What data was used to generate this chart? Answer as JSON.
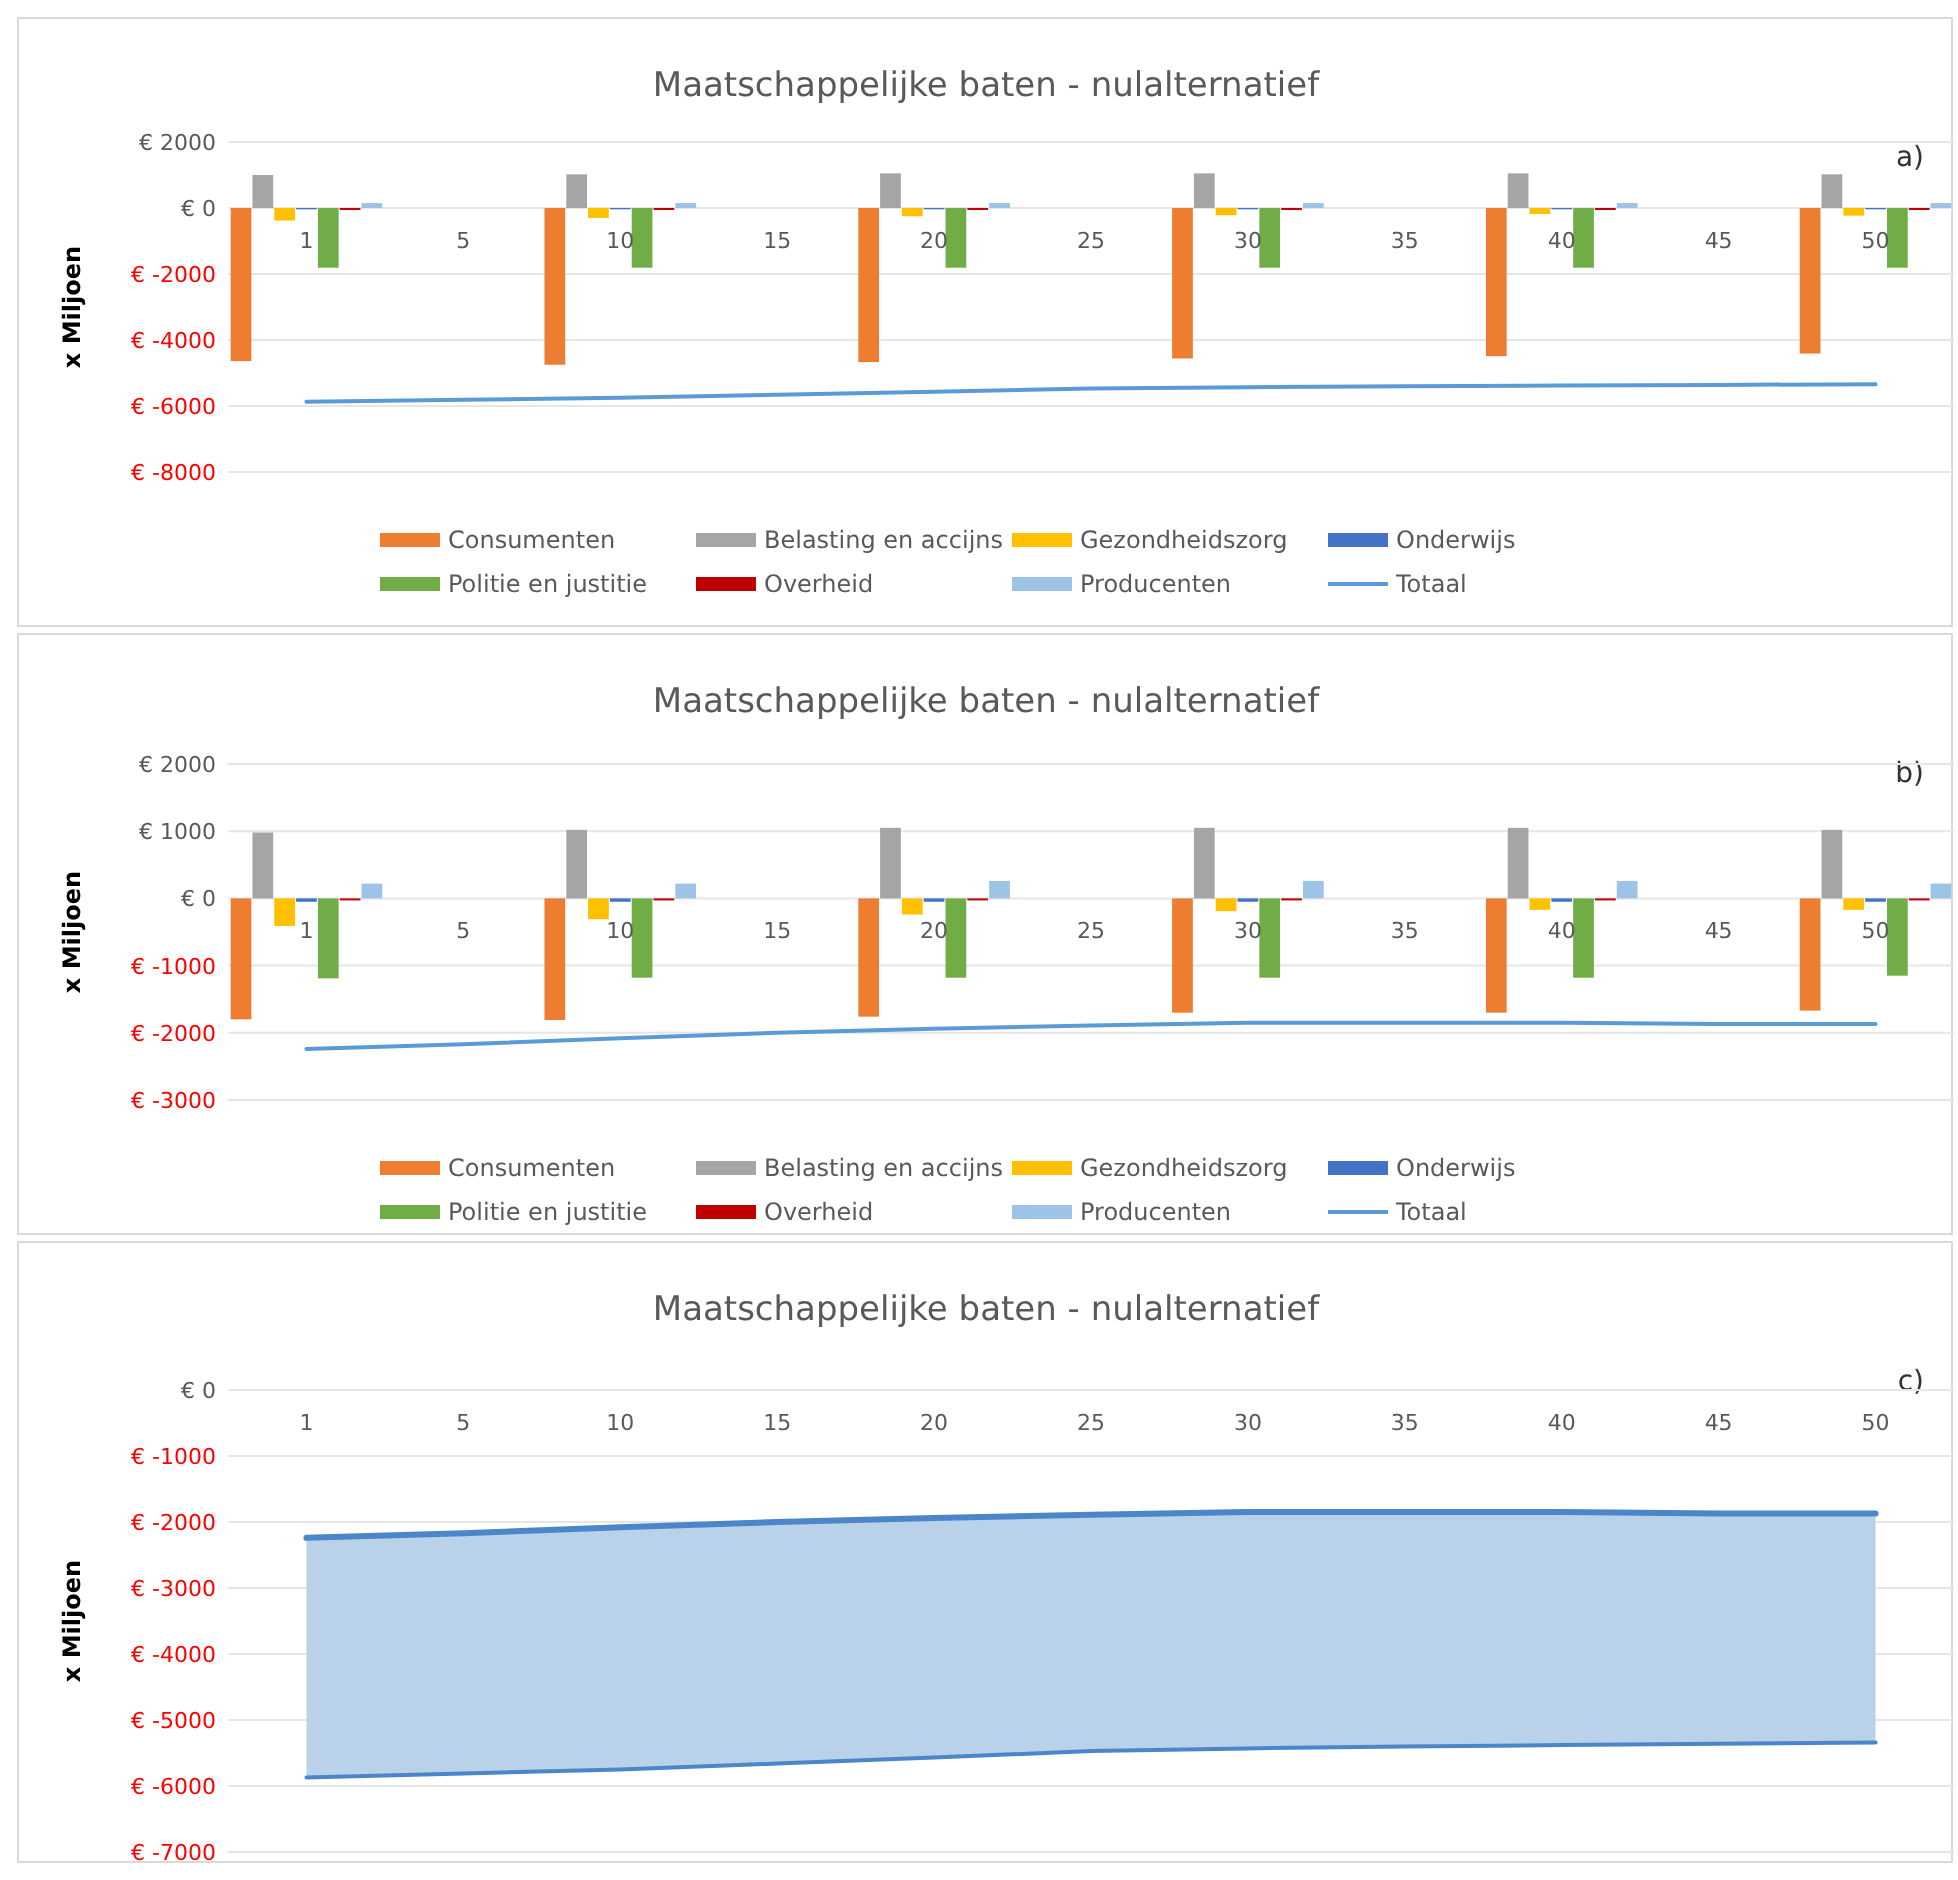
{
  "chart_data": [
    {
      "type": "bar",
      "title": "Maatschappelijke baten - nulalternatief",
      "ylabel": "x Miljoen",
      "annotations": [
        "a)"
      ],
      "categories": [
        "1",
        "5",
        "10",
        "15",
        "20",
        "25",
        "30",
        "35",
        "40",
        "45",
        "50"
      ],
      "series": [
        {
          "name": "Consumenten",
          "color": "#ed7d31",
          "values": [
            -4640,
            null,
            -4750,
            null,
            -4670,
            null,
            -4560,
            null,
            -4490,
            null,
            -4410
          ]
        },
        {
          "name": "Belasting en accijns",
          "color": "#a5a5a5",
          "values": [
            1000,
            null,
            1020,
            null,
            1050,
            null,
            1050,
            null,
            1050,
            null,
            1020
          ]
        },
        {
          "name": "Gezondheidszorg",
          "color": "#ffc000",
          "values": [
            -380,
            null,
            -300,
            null,
            -250,
            null,
            -220,
            null,
            -180,
            null,
            -230
          ]
        },
        {
          "name": "Onderwijs",
          "color": "#4472c4",
          "values": [
            -40,
            null,
            -40,
            null,
            -40,
            null,
            -40,
            null,
            -40,
            null,
            -40
          ]
        },
        {
          "name": "Politie en justitie",
          "color": "#70ad47",
          "values": [
            -1810,
            null,
            -1810,
            null,
            -1810,
            null,
            -1810,
            null,
            -1810,
            null,
            -1810
          ]
        },
        {
          "name": "Overheid",
          "color": "#c00000",
          "values": [
            -60,
            null,
            -60,
            null,
            -60,
            null,
            -60,
            null,
            -60,
            null,
            -60
          ]
        },
        {
          "name": "Producenten",
          "color": "#9dc3e6",
          "values": [
            150,
            null,
            150,
            null,
            150,
            null,
            150,
            null,
            150,
            null,
            150
          ]
        },
        {
          "name": "Totaal",
          "type": "line",
          "color": "#5b9bd5",
          "values": [
            -5870,
            -5810,
            -5750,
            -5660,
            -5570,
            -5470,
            -5430,
            -5400,
            -5380,
            -5360,
            -5340
          ]
        }
      ],
      "ylim": [
        -8000,
        2000
      ],
      "yticks": [
        {
          "value": 2000,
          "label": "€ 2000"
        },
        {
          "value": 0,
          "label": "€ 0"
        },
        {
          "value": -2000,
          "label": "€ -2000"
        },
        {
          "value": -4000,
          "label": "€ -4000"
        },
        {
          "value": -6000,
          "label": "€ -6000"
        },
        {
          "value": -8000,
          "label": "€ -8000"
        }
      ],
      "grid": "y",
      "legend": "bottom"
    },
    {
      "type": "bar",
      "title": "Maatschappelijke baten - nulalternatief",
      "ylabel": "x Miljoen",
      "annotations": [
        "b)"
      ],
      "categories": [
        "1",
        "5",
        "10",
        "15",
        "20",
        "25",
        "30",
        "35",
        "40",
        "45",
        "50"
      ],
      "series": [
        {
          "name": "Consumenten",
          "color": "#ed7d31",
          "values": [
            -1800,
            null,
            -1810,
            null,
            -1760,
            null,
            -1700,
            null,
            -1700,
            null,
            -1670
          ]
        },
        {
          "name": "Belasting en accijns",
          "color": "#a5a5a5",
          "values": [
            980,
            null,
            1020,
            null,
            1050,
            null,
            1050,
            null,
            1050,
            null,
            1020
          ]
        },
        {
          "name": "Gezondheidszorg",
          "color": "#ffc000",
          "values": [
            -410,
            null,
            -310,
            null,
            -240,
            null,
            -190,
            null,
            -170,
            null,
            -170
          ]
        },
        {
          "name": "Onderwijs",
          "color": "#4472c4",
          "values": [
            -50,
            null,
            -50,
            null,
            -50,
            null,
            -50,
            null,
            -50,
            null,
            -50
          ]
        },
        {
          "name": "Politie en justitie",
          "color": "#70ad47",
          "values": [
            -1190,
            null,
            -1180,
            null,
            -1180,
            null,
            -1180,
            null,
            -1180,
            null,
            -1150
          ]
        },
        {
          "name": "Overheid",
          "color": "#c00000",
          "values": [
            -30,
            null,
            -30,
            null,
            -30,
            null,
            -30,
            null,
            -30,
            null,
            -30
          ]
        },
        {
          "name": "Producenten",
          "color": "#9dc3e6",
          "values": [
            220,
            null,
            220,
            null,
            260,
            null,
            260,
            null,
            260,
            null,
            220
          ]
        },
        {
          "name": "Totaal",
          "type": "line",
          "color": "#5b9bd5",
          "values": [
            -2240,
            -2170,
            -2080,
            -2000,
            -1940,
            -1890,
            -1850,
            -1850,
            -1850,
            -1870,
            -1870
          ]
        }
      ],
      "ylim": [
        -3000,
        2000
      ],
      "yticks": [
        {
          "value": 2000,
          "label": "€ 2000"
        },
        {
          "value": 1000,
          "label": "€ 1000"
        },
        {
          "value": 0,
          "label": "€ 0"
        },
        {
          "value": -1000,
          "label": "€ -1000"
        },
        {
          "value": -2000,
          "label": "€ -2000"
        },
        {
          "value": -3000,
          "label": "€ -3000"
        }
      ],
      "grid": "y",
      "legend": "bottom"
    },
    {
      "type": "line",
      "title": "Maatschappelijke baten - nulalternatief",
      "ylabel": "x Miljoen",
      "annotations": [
        "c)"
      ],
      "categories": [
        "1",
        "5",
        "10",
        "15",
        "20",
        "25",
        "30",
        "35",
        "40",
        "45",
        "50"
      ],
      "series": [
        {
          "color": "#4a86c8",
          "values": [
            -5870,
            -5810,
            -5750,
            -5660,
            -5570,
            -5470,
            -5430,
            -5400,
            -5380,
            -5360,
            -5340
          ]
        },
        {
          "color": "#4a86c8",
          "values": [
            -2240,
            -2170,
            -2080,
            -2000,
            -1940,
            -1890,
            -1850,
            -1850,
            -1850,
            -1870,
            -1870
          ],
          "lower": [
            -5870,
            -5810,
            -5750,
            -5660,
            -5570,
            -5470,
            -5430,
            -5400,
            -5380,
            -5360,
            -5340
          ],
          "upper": [
            -2240,
            -2170,
            -2080,
            -2000,
            -1940,
            -1890,
            -1850,
            -1850,
            -1850,
            -1870,
            -1870
          ]
        }
      ],
      "ylim": [
        -7000,
        0
      ],
      "yticks": [
        {
          "value": 0,
          "label": "€ 0"
        },
        {
          "value": -1000,
          "label": "€ -1000"
        },
        {
          "value": -2000,
          "label": "€ -2000"
        },
        {
          "value": -3000,
          "label": "€ -3000"
        },
        {
          "value": -4000,
          "label": "€ -4000"
        },
        {
          "value": -5000,
          "label": "€ -5000"
        },
        {
          "value": -6000,
          "label": "€ -6000"
        },
        {
          "value": -7000,
          "label": "€ -7000"
        }
      ],
      "grid": "y"
    }
  ]
}
